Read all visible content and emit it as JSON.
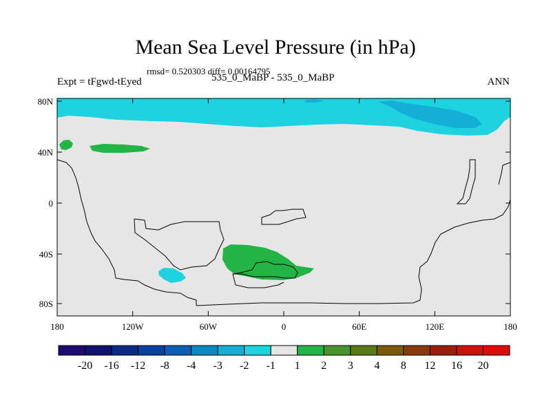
{
  "title": "Mean Sea Level Pressure (in hPa)",
  "stats": "rmsd= 0.520303 diff= 0.00164795",
  "left_label": "Expt = tFgwd-tEyed",
  "center_label": "535_0_MaBP - 535_0_MaBP",
  "right_label": "ANN",
  "lat_labels": [
    "80N",
    "40N",
    "0",
    "40S",
    "80S"
  ],
  "lon_labels": [
    "180",
    "120W",
    "60W",
    "0",
    "60E",
    "120E",
    "180"
  ],
  "colorbar": {
    "labels": [
      "-20",
      "-16",
      "-12",
      "-8",
      "-4",
      "-3",
      "-2",
      "-1",
      "1",
      "2",
      "3",
      "4",
      "8",
      "12",
      "16",
      "20"
    ],
    "colors": [
      "#1e0a6e",
      "#10106e",
      "#0a2a86",
      "#0a40a0",
      "#0a60b4",
      "#0a88c2",
      "#14aed6",
      "#1ed2e0",
      "#e6e6e6",
      "#23b446",
      "#47942c",
      "#5a7a14",
      "#7a5a0a",
      "#8a3a0a",
      "#9c1e0a",
      "#c8140a",
      "#e00a0a"
    ]
  },
  "map": {
    "background_color": "#e6e6e6",
    "neg_light_color": "#1ed2e0",
    "neg_dark_color": "#14aed6",
    "pos_color": "#23b446"
  }
}
